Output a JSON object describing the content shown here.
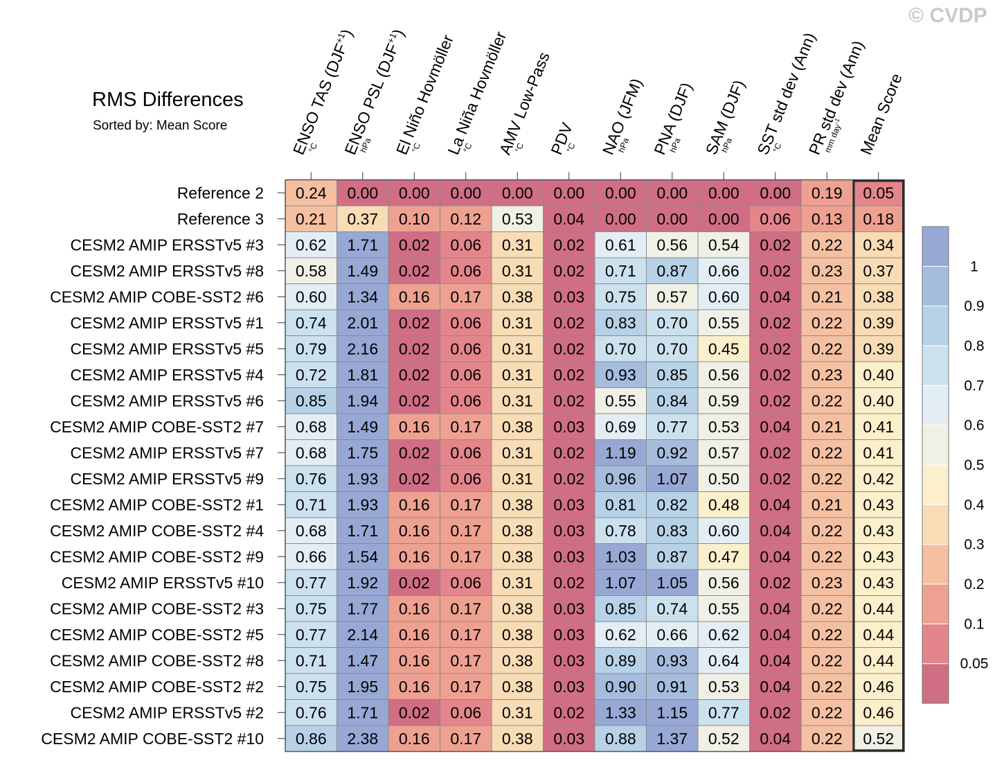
{
  "title": "RMS Differences",
  "subtitle": "Sorted by: Mean Score",
  "watermark": "© CVDP",
  "chart_data": {
    "type": "heatmap",
    "title": "RMS Differences",
    "subtitle": "Sorted by: Mean Score",
    "columns": [
      {
        "label": "ENSO TAS (DJF",
        "sup": "+1",
        "tail": ")",
        "unit": "°C"
      },
      {
        "label": "ENSO PSL (DJF",
        "sup": "+1",
        "tail": ")",
        "unit": "hPa"
      },
      {
        "label": "El Niño Hovmöller",
        "sup": "",
        "tail": "",
        "unit": "°C"
      },
      {
        "label": "La Niña Hovmöller",
        "sup": "",
        "tail": "",
        "unit": "°C"
      },
      {
        "label": "AMV Low-Pass",
        "sup": "",
        "tail": "",
        "unit": "°C"
      },
      {
        "label": "PDV",
        "sup": "",
        "tail": "",
        "unit": "°C"
      },
      {
        "label": "NAO (JFM)",
        "sup": "",
        "tail": "",
        "unit": "hPa"
      },
      {
        "label": "PNA (DJF)",
        "sup": "",
        "tail": "",
        "unit": "hPa"
      },
      {
        "label": "SAM (DJF)",
        "sup": "",
        "tail": "",
        "unit": "hPa"
      },
      {
        "label": "SST std dev (Ann)",
        "sup": "",
        "tail": "",
        "unit": "°C"
      },
      {
        "label": "PR std dev (Ann)",
        "sup": "",
        "tail": "",
        "unit": "mm day",
        "unit_sup": "-1"
      },
      {
        "label": "Mean Score",
        "sup": "",
        "tail": "",
        "unit": ""
      }
    ],
    "rows": [
      {
        "label": "Reference 2",
        "values": [
          "0.24",
          "0.00",
          "0.00",
          "0.00",
          "0.00",
          "0.00",
          "0.00",
          "0.00",
          "0.00",
          "0.00",
          "0.19",
          "0.05"
        ]
      },
      {
        "label": "Reference 3",
        "values": [
          "0.21",
          "0.37",
          "0.10",
          "0.12",
          "0.53",
          "0.04",
          "0.00",
          "0.00",
          "0.00",
          "0.06",
          "0.13",
          "0.18"
        ]
      },
      {
        "label": "CESM2 AMIP ERSSTv5 #3",
        "values": [
          "0.62",
          "1.71",
          "0.02",
          "0.06",
          "0.31",
          "0.02",
          "0.61",
          "0.56",
          "0.54",
          "0.02",
          "0.22",
          "0.34"
        ]
      },
      {
        "label": "CESM2 AMIP ERSSTv5 #8",
        "values": [
          "0.58",
          "1.49",
          "0.02",
          "0.06",
          "0.31",
          "0.02",
          "0.71",
          "0.87",
          "0.66",
          "0.02",
          "0.23",
          "0.37"
        ]
      },
      {
        "label": "CESM2 AMIP COBE-SST2 #6",
        "values": [
          "0.60",
          "1.34",
          "0.16",
          "0.17",
          "0.38",
          "0.03",
          "0.75",
          "0.57",
          "0.60",
          "0.04",
          "0.21",
          "0.38"
        ]
      },
      {
        "label": "CESM2 AMIP ERSSTv5 #1",
        "values": [
          "0.74",
          "2.01",
          "0.02",
          "0.06",
          "0.31",
          "0.02",
          "0.83",
          "0.70",
          "0.55",
          "0.02",
          "0.22",
          "0.39"
        ]
      },
      {
        "label": "CESM2 AMIP ERSSTv5 #5",
        "values": [
          "0.79",
          "2.16",
          "0.02",
          "0.06",
          "0.31",
          "0.02",
          "0.70",
          "0.70",
          "0.45",
          "0.02",
          "0.22",
          "0.39"
        ]
      },
      {
        "label": "CESM2 AMIP ERSSTv5 #4",
        "values": [
          "0.72",
          "1.81",
          "0.02",
          "0.06",
          "0.31",
          "0.02",
          "0.93",
          "0.85",
          "0.56",
          "0.02",
          "0.23",
          "0.40"
        ]
      },
      {
        "label": "CESM2 AMIP ERSSTv5 #6",
        "values": [
          "0.85",
          "1.94",
          "0.02",
          "0.06",
          "0.31",
          "0.02",
          "0.55",
          "0.84",
          "0.59",
          "0.02",
          "0.22",
          "0.40"
        ]
      },
      {
        "label": "CESM2 AMIP COBE-SST2 #7",
        "values": [
          "0.68",
          "1.49",
          "0.16",
          "0.17",
          "0.38",
          "0.03",
          "0.69",
          "0.77",
          "0.53",
          "0.04",
          "0.21",
          "0.41"
        ]
      },
      {
        "label": "CESM2 AMIP ERSSTv5 #7",
        "values": [
          "0.68",
          "1.75",
          "0.02",
          "0.06",
          "0.31",
          "0.02",
          "1.19",
          "0.92",
          "0.57",
          "0.02",
          "0.22",
          "0.41"
        ]
      },
      {
        "label": "CESM2 AMIP ERSSTv5 #9",
        "values": [
          "0.76",
          "1.93",
          "0.02",
          "0.06",
          "0.31",
          "0.02",
          "0.96",
          "1.07",
          "0.50",
          "0.02",
          "0.22",
          "0.42"
        ]
      },
      {
        "label": "CESM2 AMIP COBE-SST2 #1",
        "values": [
          "0.71",
          "1.93",
          "0.16",
          "0.17",
          "0.38",
          "0.03",
          "0.81",
          "0.82",
          "0.48",
          "0.04",
          "0.21",
          "0.43"
        ]
      },
      {
        "label": "CESM2 AMIP COBE-SST2 #4",
        "values": [
          "0.68",
          "1.71",
          "0.16",
          "0.17",
          "0.38",
          "0.03",
          "0.78",
          "0.83",
          "0.60",
          "0.04",
          "0.22",
          "0.43"
        ]
      },
      {
        "label": "CESM2 AMIP COBE-SST2 #9",
        "values": [
          "0.66",
          "1.54",
          "0.16",
          "0.17",
          "0.38",
          "0.03",
          "1.03",
          "0.87",
          "0.47",
          "0.04",
          "0.22",
          "0.43"
        ]
      },
      {
        "label": "CESM2 AMIP ERSSTv5 #10",
        "values": [
          "0.77",
          "1.92",
          "0.02",
          "0.06",
          "0.31",
          "0.02",
          "1.07",
          "1.05",
          "0.56",
          "0.02",
          "0.23",
          "0.43"
        ]
      },
      {
        "label": "CESM2 AMIP COBE-SST2 #3",
        "values": [
          "0.75",
          "1.77",
          "0.16",
          "0.17",
          "0.38",
          "0.03",
          "0.85",
          "0.74",
          "0.55",
          "0.04",
          "0.22",
          "0.44"
        ]
      },
      {
        "label": "CESM2 AMIP COBE-SST2 #5",
        "values": [
          "0.77",
          "2.14",
          "0.16",
          "0.17",
          "0.38",
          "0.03",
          "0.62",
          "0.66",
          "0.62",
          "0.04",
          "0.22",
          "0.44"
        ]
      },
      {
        "label": "CESM2 AMIP COBE-SST2 #8",
        "values": [
          "0.71",
          "1.47",
          "0.16",
          "0.17",
          "0.38",
          "0.03",
          "0.89",
          "0.93",
          "0.64",
          "0.04",
          "0.22",
          "0.44"
        ]
      },
      {
        "label": "CESM2 AMIP COBE-SST2 #2",
        "values": [
          "0.75",
          "1.95",
          "0.16",
          "0.17",
          "0.38",
          "0.03",
          "0.90",
          "0.91",
          "0.53",
          "0.04",
          "0.22",
          "0.46"
        ]
      },
      {
        "label": "CESM2 AMIP ERSSTv5 #2",
        "values": [
          "0.76",
          "1.71",
          "0.02",
          "0.06",
          "0.31",
          "0.02",
          "1.33",
          "1.15",
          "0.77",
          "0.02",
          "0.22",
          "0.46"
        ]
      },
      {
        "label": "CESM2 AMIP COBE-SST2 #10",
        "values": [
          "0.86",
          "2.38",
          "0.16",
          "0.17",
          "0.38",
          "0.03",
          "0.88",
          "1.37",
          "0.52",
          "0.04",
          "0.22",
          "0.52"
        ]
      }
    ],
    "colorbar": {
      "thresholds": [
        0.05,
        0.1,
        0.2,
        0.3,
        0.4,
        0.5,
        0.6,
        0.7,
        0.8,
        0.9,
        1
      ],
      "labels": [
        "0.05",
        "0.1",
        "0.2",
        "0.3",
        "0.4",
        "0.5",
        "0.6",
        "0.7",
        "0.8",
        "0.9",
        "1"
      ],
      "colors": [
        "#cf6e84",
        "#e4858c",
        "#eea190",
        "#f5c0a2",
        "#f8dcb6",
        "#fcefcb",
        "#f1f0e6",
        "#e2eef3",
        "#cbe1ee",
        "#b7d2e7",
        "#a6bcdd",
        "#98a8d5"
      ]
    }
  }
}
